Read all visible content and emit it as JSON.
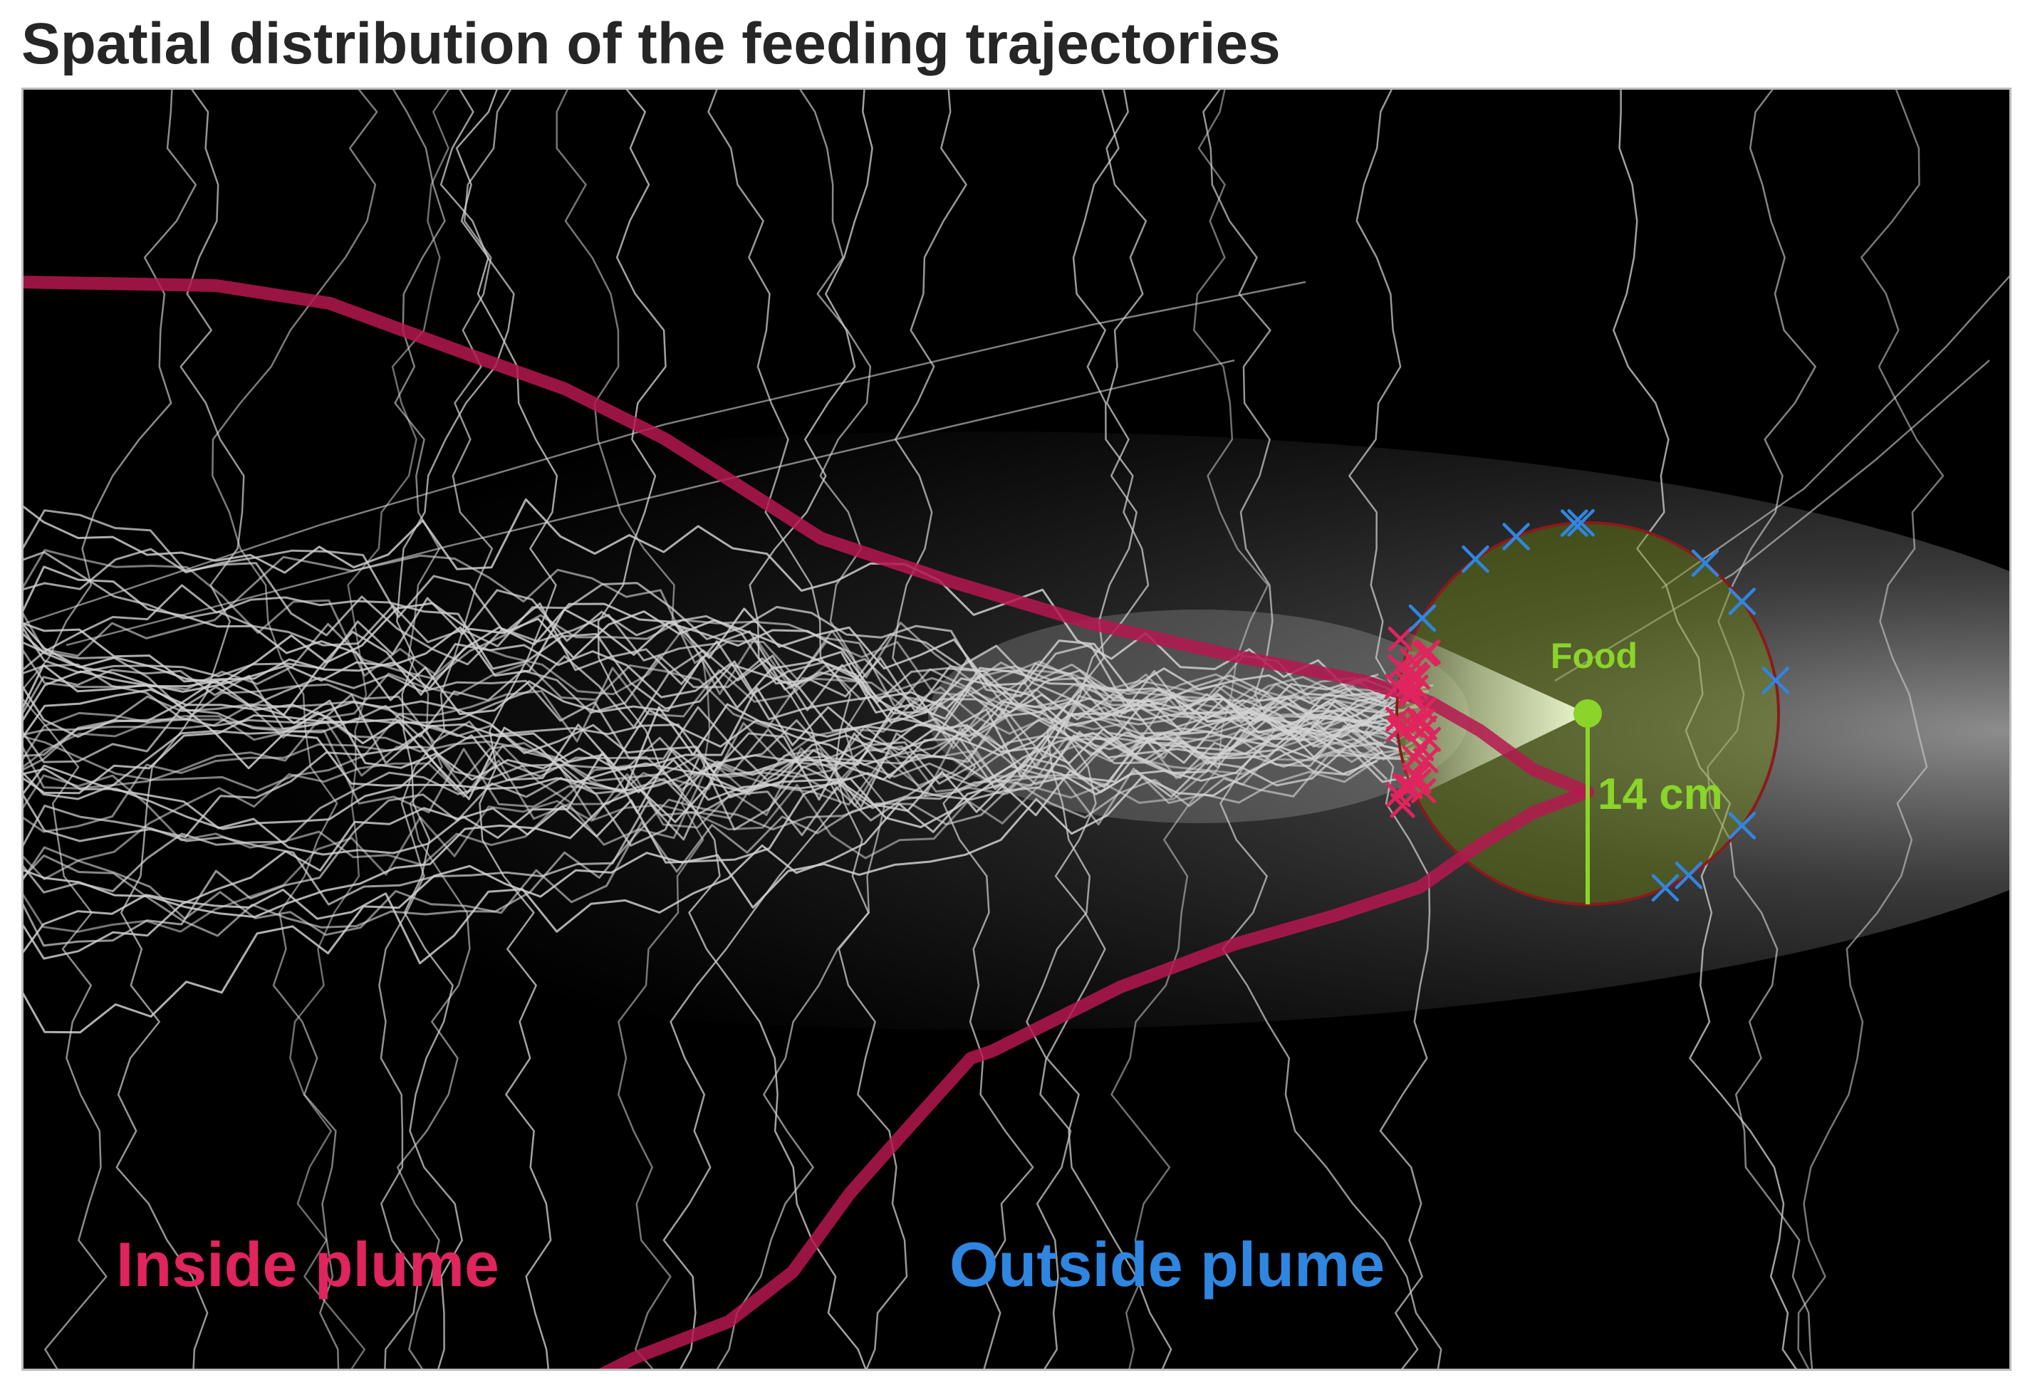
{
  "title": "Spatial distribution of the feeding trajectories",
  "labels": {
    "food": "Food",
    "radius": "14 cm",
    "inside_plume": "Inside plume",
    "outside_plume": "Outside plume"
  },
  "colors": {
    "plume_boundary": "#b5174f",
    "inside_marker": "#e0245e",
    "outside_marker": "#2f86e0",
    "food_zone_fill": "#3a4a0a",
    "food_zone_edge": "#8b1a1a",
    "food_accent": "#8bd42a",
    "trajectory": "#c8c8c8",
    "background": "#000000"
  }
}
